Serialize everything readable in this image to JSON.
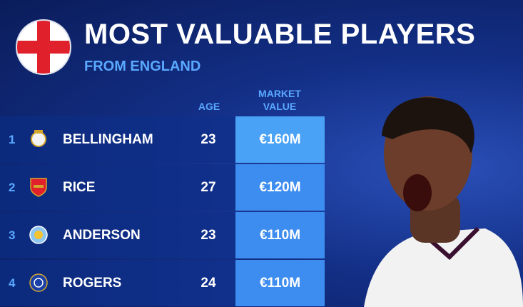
{
  "header": {
    "title": "MOST VALUABLE PLAYERS",
    "subtitle": "FROM ENGLAND"
  },
  "table": {
    "columns": [
      "AGE",
      "MARKET VALUE"
    ],
    "rows": [
      [
        1,
        "BELLINGHAM",
        23,
        "€160M"
      ],
      [
        2,
        "RICE",
        27,
        "€120M"
      ],
      [
        3,
        "ANDERSON",
        23,
        "€110M"
      ],
      [
        4,
        "ROGERS",
        24,
        "€110M"
      ]
    ]
  }
}
